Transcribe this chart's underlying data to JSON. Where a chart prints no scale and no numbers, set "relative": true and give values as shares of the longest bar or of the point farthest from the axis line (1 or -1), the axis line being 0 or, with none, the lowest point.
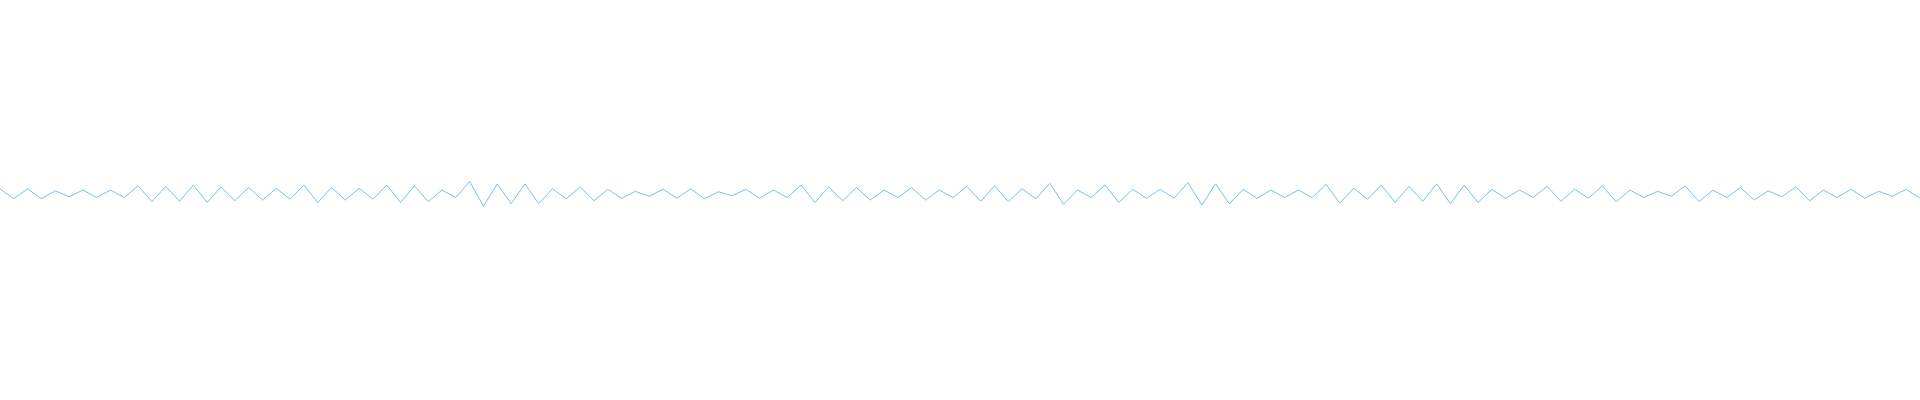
{
  "chart_data": {
    "type": "line",
    "relative": true,
    "color": "#5dade2",
    "categories": [
      null,
      null,
      null,
      null,
      null,
      null,
      null,
      null,
      null,
      null,
      null,
      null,
      null,
      null,
      null,
      null,
      null,
      null,
      null,
      null,
      null,
      null,
      null,
      null,
      null,
      null,
      null,
      null,
      null,
      null,
      null,
      null,
      null,
      null,
      null,
      null,
      null,
      null,
      null,
      null,
      null,
      null,
      null,
      null,
      null,
      null,
      null,
      null,
      null,
      null,
      null,
      null,
      null,
      null,
      null,
      null,
      null,
      null,
      null,
      null,
      null,
      null,
      null,
      null,
      null,
      null,
      null,
      null,
      null,
      null,
      null,
      null,
      null,
      null,
      null,
      null,
      null,
      null,
      null,
      null,
      null,
      null,
      null,
      null,
      null,
      null,
      null,
      null,
      null,
      null,
      null,
      null,
      null,
      null,
      null,
      null,
      null,
      null,
      null,
      null,
      null,
      null,
      null,
      null,
      null,
      null,
      null,
      null,
      null,
      null,
      null,
      null,
      null,
      null,
      null,
      null,
      null,
      null,
      null,
      null,
      null,
      null,
      null,
      null,
      null,
      null,
      null,
      null,
      null,
      null,
      null,
      null,
      null,
      null,
      null,
      null,
      null,
      null,
      null,
      null
    ],
    "values": [
      0.7,
      0.3,
      0.7,
      0.3,
      0.62,
      0.38,
      0.65,
      0.35,
      0.65,
      0.35,
      0.82,
      0.18,
      0.8,
      0.2,
      0.85,
      0.15,
      0.78,
      0.22,
      0.75,
      0.25,
      0.72,
      0.28,
      0.85,
      0.15,
      0.75,
      0.25,
      0.72,
      0.28,
      0.85,
      0.15,
      0.82,
      0.18,
      0.65,
      0.35,
      1.0,
      0.0,
      0.9,
      0.1,
      0.9,
      0.1,
      0.7,
      0.3,
      0.78,
      0.22,
      0.68,
      0.32,
      0.6,
      0.4,
      0.68,
      0.32,
      0.7,
      0.3,
      0.58,
      0.42,
      0.68,
      0.32,
      0.65,
      0.35,
      0.85,
      0.15,
      0.78,
      0.22,
      0.75,
      0.25,
      0.65,
      0.35,
      0.75,
      0.25,
      0.65,
      0.35,
      0.8,
      0.2,
      0.82,
      0.18,
      0.7,
      0.3,
      0.92,
      0.08,
      0.65,
      0.35,
      0.85,
      0.15,
      0.68,
      0.32,
      0.68,
      0.32,
      0.95,
      0.05,
      0.9,
      0.1,
      0.68,
      0.32,
      0.65,
      0.35,
      0.65,
      0.35,
      0.88,
      0.12,
      0.72,
      0.28,
      0.85,
      0.15,
      0.8,
      0.2,
      0.9,
      0.1,
      0.85,
      0.15,
      0.68,
      0.32,
      0.65,
      0.35,
      0.8,
      0.2,
      0.68,
      0.32,
      0.82,
      0.18,
      0.65,
      0.35,
      0.6,
      0.4,
      0.82,
      0.18,
      0.65,
      0.35,
      0.75,
      0.25,
      0.62,
      0.38,
      0.78,
      0.22,
      0.65,
      0.35,
      0.68,
      0.32,
      0.6,
      0.4,
      0.68,
      0.32
    ]
  }
}
